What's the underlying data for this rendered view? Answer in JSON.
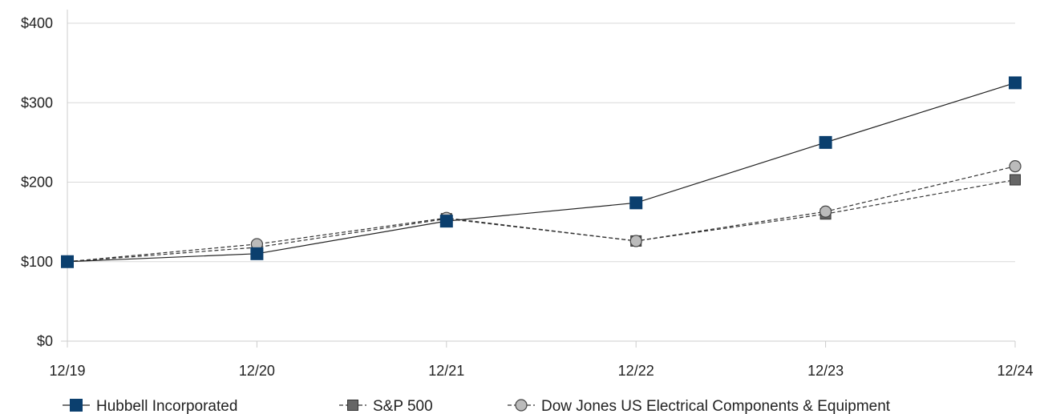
{
  "chart_data": {
    "type": "line",
    "categories": [
      "12/19",
      "12/20",
      "12/21",
      "12/22",
      "12/23",
      "12/24"
    ],
    "y_ticks": [
      "$0",
      "$100",
      "$200",
      "$300",
      "$400"
    ],
    "y_tick_values": [
      0,
      100,
      200,
      300,
      400
    ],
    "ylim": [
      0,
      400
    ],
    "grid": "horizontal",
    "legend_position": "bottom",
    "series": [
      {
        "name": "Hubbell Incorporated",
        "values": [
          100,
          110,
          151,
          174,
          250,
          325
        ],
        "color": "#0b3f6e",
        "marker": "square",
        "line_style": "solid"
      },
      {
        "name": "S&P 500",
        "values": [
          100,
          118,
          154,
          126,
          160,
          203
        ],
        "color": "#666666",
        "marker": "square",
        "line_style": "dashed"
      },
      {
        "name": "Dow Jones US Electrical Components & Equipment",
        "values": [
          100,
          122,
          155,
          126,
          163,
          220
        ],
        "color": "#bbbbbb",
        "marker": "circle",
        "line_style": "dashed"
      }
    ]
  }
}
